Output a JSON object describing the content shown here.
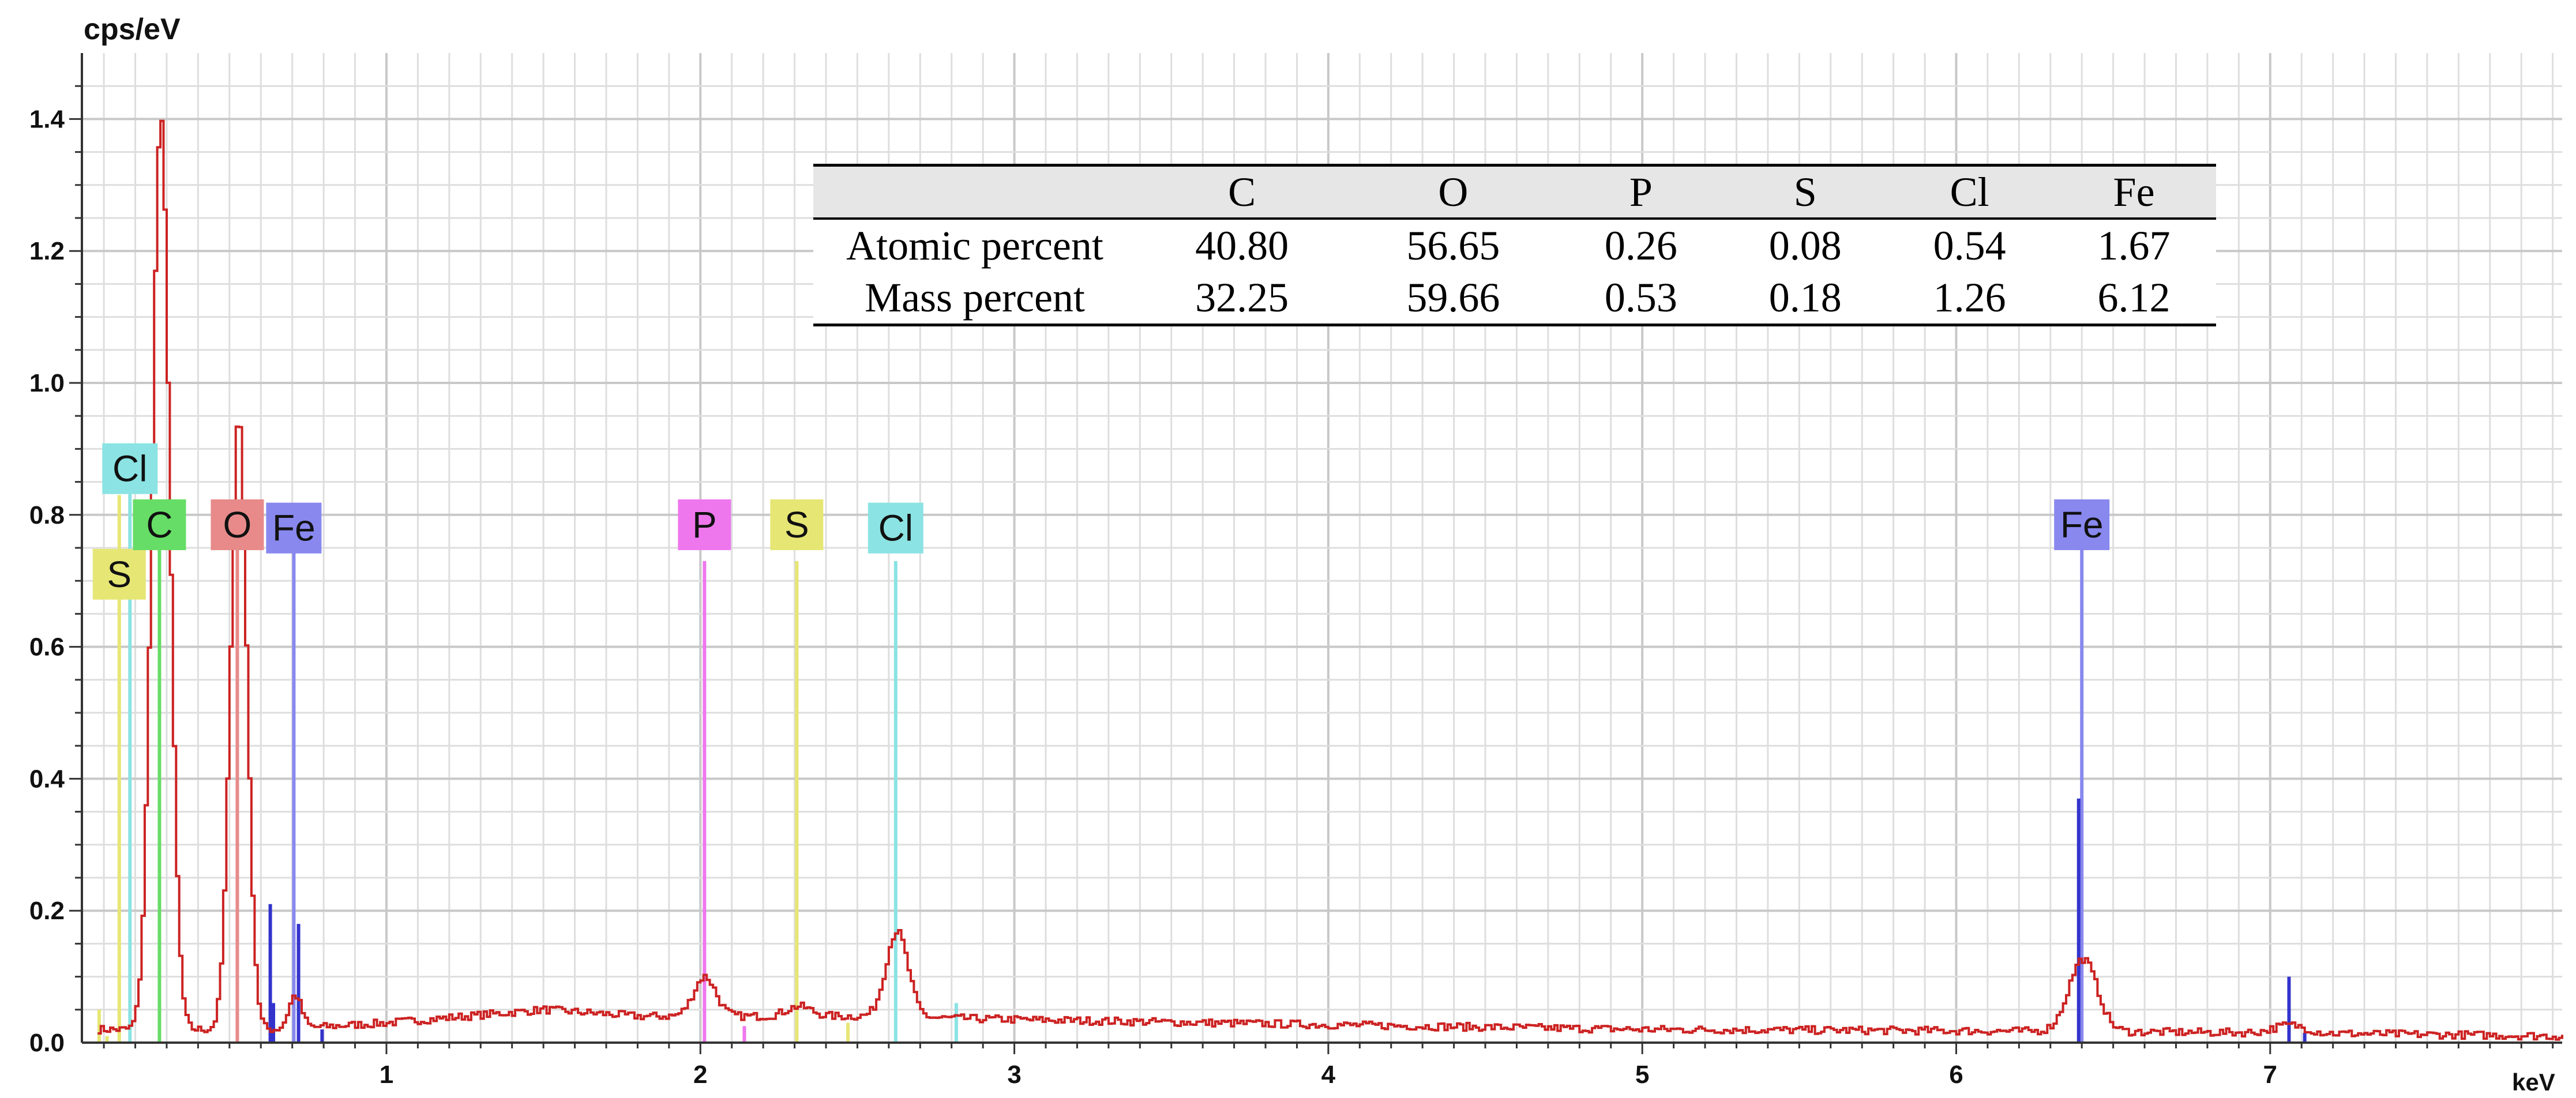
{
  "chart_data": {
    "type": "line",
    "ylabel": "cps/eV",
    "xlabel": "keV",
    "xlim": [
      0.03,
      7.93
    ],
    "ylim": [
      0,
      1.5
    ],
    "grid": true,
    "x_ticks": [
      {
        "value": 1,
        "label": "1"
      },
      {
        "value": 2,
        "label": "2"
      },
      {
        "value": 3,
        "label": "3"
      },
      {
        "value": 4,
        "label": "4"
      },
      {
        "value": 5,
        "label": "5"
      },
      {
        "value": 6,
        "label": "6"
      },
      {
        "value": 7,
        "label": "7"
      }
    ],
    "y_ticks": [
      {
        "value": 0,
        "label": "0.0"
      },
      {
        "value": 0.2,
        "label": "0.2"
      },
      {
        "value": 0.4,
        "label": "0.4"
      },
      {
        "value": 0.6,
        "label": "0.6"
      },
      {
        "value": 0.8,
        "label": "0.8"
      },
      {
        "value": 1.0,
        "label": "1.0"
      },
      {
        "value": 1.2,
        "label": "1.2"
      },
      {
        "value": 1.4,
        "label": "1.4"
      }
    ],
    "spectrum": {
      "color": "#cc2222",
      "peaks": [
        {
          "center": 0.277,
          "height": 1.38,
          "width": 0.028
        },
        {
          "center": 0.525,
          "height": 0.93,
          "width": 0.026
        },
        {
          "center": 0.705,
          "height": 0.05,
          "width": 0.02
        },
        {
          "center": 2.01,
          "height": 0.06,
          "width": 0.035
        },
        {
          "center": 2.31,
          "height": 0.015,
          "width": 0.04
        },
        {
          "center": 2.622,
          "height": 0.13,
          "width": 0.035
        },
        {
          "center": 6.4,
          "height": 0.11,
          "width": 0.045
        },
        {
          "center": 7.06,
          "height": 0.012,
          "width": 0.05
        }
      ],
      "background": [
        [
          0.65,
          0.02
        ],
        [
          1.0,
          0.03
        ],
        [
          1.5,
          0.05
        ],
        [
          1.8,
          0.04
        ],
        [
          2.5,
          0.04
        ],
        [
          3.0,
          0.035
        ],
        [
          4.0,
          0.027
        ],
        [
          5.0,
          0.02
        ],
        [
          6.0,
          0.018
        ],
        [
          7.0,
          0.015
        ],
        [
          7.93,
          0.01
        ]
      ]
    },
    "element_markers": [
      {
        "element": "S",
        "energy": 0.149,
        "height": 0.83,
        "color": "#e6e675",
        "label_y": 0.71,
        "label_side": "center"
      },
      {
        "element": "Cl",
        "energy": 0.183,
        "height": 0.86,
        "color": "#8be3e3",
        "label_y": 0.87,
        "label_side": "center"
      },
      {
        "element": "C",
        "energy": 0.277,
        "height": 0.77,
        "color": "#66dd66",
        "label_y": 0.785,
        "label_side": "center"
      },
      {
        "element": "O",
        "energy": 0.525,
        "height": 0.79,
        "color": "#e88a8a",
        "label_y": 0.785,
        "label_side": "center"
      },
      {
        "element": "Fe",
        "energy": 0.705,
        "height": 0.75,
        "color": "#8888ee",
        "label_y": 0.78,
        "label_side": "center"
      },
      {
        "element": "P",
        "energy": 2.013,
        "height": 0.73,
        "color": "#ee77ee",
        "label_y": 0.785,
        "label_side": "center"
      },
      {
        "element": "S",
        "energy": 2.307,
        "height": 0.73,
        "color": "#e6e675",
        "label_y": 0.785,
        "label_side": "center"
      },
      {
        "element": "Cl",
        "energy": 2.622,
        "height": 0.73,
        "color": "#8be3e3",
        "label_y": 0.78,
        "label_side": "center"
      },
      {
        "element": "Fe",
        "energy": 6.4,
        "height": 0.75,
        "color": "#8888ee",
        "label_y": 0.785,
        "label_side": "center"
      }
    ],
    "minor_lines": [
      {
        "energy": 0.085,
        "height": 0.05,
        "color": "#e6e675"
      },
      {
        "energy": 0.11,
        "height": 0.01,
        "color": "#e6e675"
      },
      {
        "energy": 0.63,
        "height": 0.21,
        "color": "#3333cc"
      },
      {
        "energy": 0.64,
        "height": 0.06,
        "color": "#3333cc"
      },
      {
        "energy": 0.72,
        "height": 0.18,
        "color": "#3333cc"
      },
      {
        "energy": 0.795,
        "height": 0.02,
        "color": "#3333cc"
      },
      {
        "energy": 2.14,
        "height": 0.025,
        "color": "#ee77ee"
      },
      {
        "energy": 2.47,
        "height": 0.03,
        "color": "#e6e675"
      },
      {
        "energy": 2.815,
        "height": 0.06,
        "color": "#8be3e3"
      },
      {
        "energy": 6.39,
        "height": 0.37,
        "color": "#3333cc"
      },
      {
        "energy": 7.06,
        "height": 0.1,
        "color": "#3333cc"
      },
      {
        "energy": 7.11,
        "height": 0.015,
        "color": "#3333cc"
      }
    ]
  },
  "composition_table": {
    "columns": [
      "",
      "C",
      "O",
      "P",
      "S",
      "Cl",
      "Fe"
    ],
    "rows": [
      {
        "label": "Atomic percent",
        "values": [
          "40.80",
          "56.65",
          "0.26",
          "0.08",
          "0.54",
          "1.67"
        ]
      },
      {
        "label": "Mass percent",
        "values": [
          "32.25",
          "59.66",
          "0.53",
          "0.18",
          "1.26",
          "6.12"
        ]
      }
    ]
  }
}
